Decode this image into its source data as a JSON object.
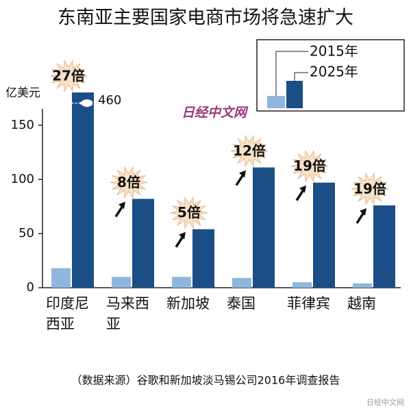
{
  "chart_data": {
    "type": "bar",
    "title": "东南亚主要国家电商市场将急速扩大",
    "y_label": "亿美元",
    "categories": [
      "印度尼西亚",
      "马来西亚",
      "新加坡",
      "泰国",
      "菲律宾",
      "越南"
    ],
    "series": [
      {
        "name": "2015年",
        "color": "#8fb6dd",
        "values": [
          18,
          10,
          10,
          9,
          5,
          4
        ]
      },
      {
        "name": "2025年",
        "color": "#1b4e86",
        "values": [
          460,
          82,
          54,
          111,
          97,
          76
        ]
      }
    ],
    "annotations": [
      "27倍",
      "8倍",
      "5倍",
      "12倍",
      "19倍",
      "19倍"
    ],
    "ylim": [
      0,
      160
    ],
    "yticks": [
      0,
      50,
      100,
      150
    ],
    "axis_break": true,
    "source": "（数据来源）谷歌和新加坡淡马锡公司2016年调查报告"
  },
  "watermark": "日经中文网",
  "badge": "日经中文网"
}
